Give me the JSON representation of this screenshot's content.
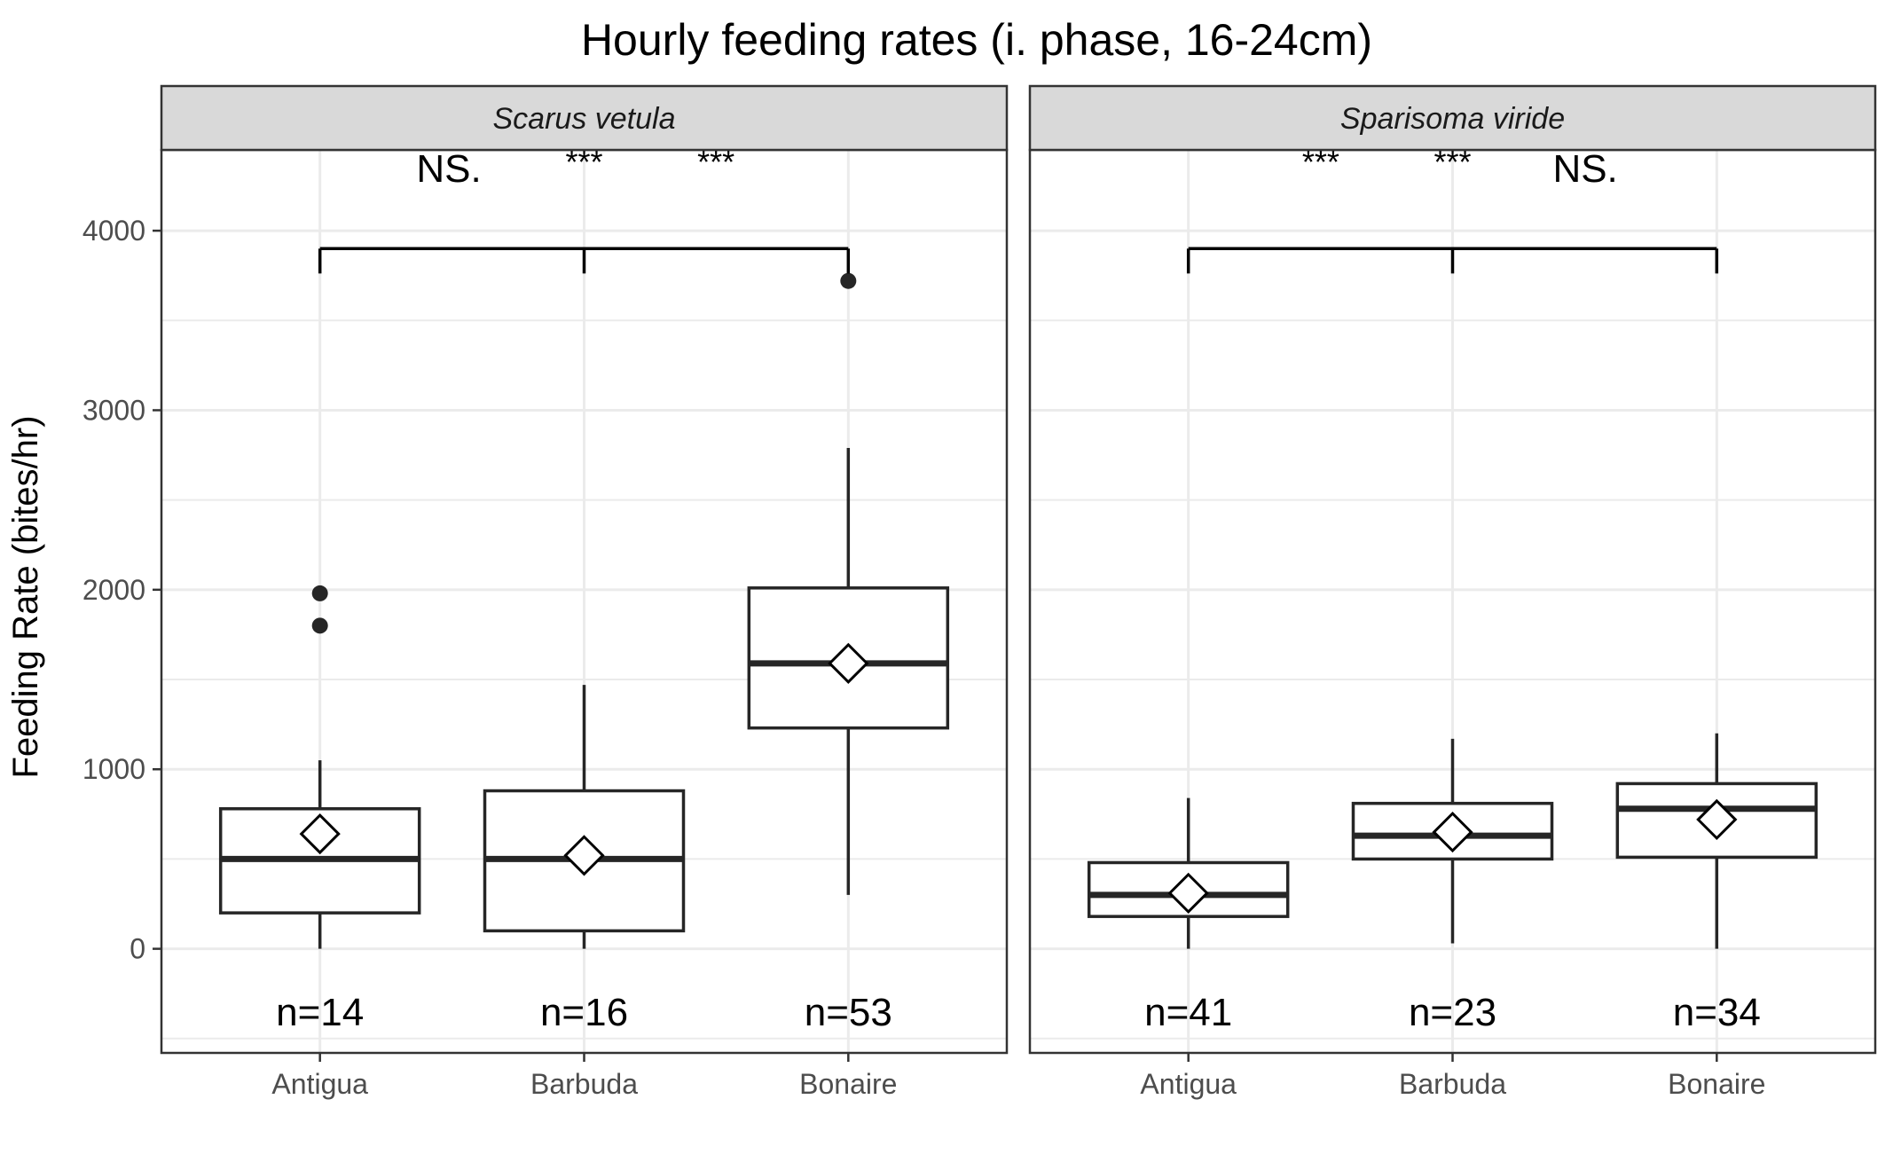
{
  "chart_data": {
    "type": "box",
    "title": "Hourly feeding rates (i. phase, 16-24cm)",
    "ylabel": "Feeding Rate (bites/hr)",
    "xlabel": "",
    "categories": [
      "Antigua",
      "Barbuda",
      "Bonaire"
    ],
    "y_ticks": [
      "0",
      "1000",
      "2000",
      "3000",
      "4000"
    ],
    "ylim": [
      -580,
      4450
    ],
    "grid": true,
    "panels": [
      {
        "label": "Scarus vetula",
        "groups": [
          {
            "category": "Antigua",
            "n_label": "n=14",
            "whisker_low": 0,
            "q1": 200,
            "median": 500,
            "q3": 780,
            "whisker_high": 1050,
            "mean": 640,
            "outliers": [
              1800,
              1980
            ]
          },
          {
            "category": "Barbuda",
            "n_label": "n=16",
            "whisker_low": 0,
            "q1": 100,
            "median": 500,
            "q3": 880,
            "whisker_high": 1470,
            "mean": 520,
            "outliers": []
          },
          {
            "category": "Bonaire",
            "n_label": "n=53",
            "whisker_low": 300,
            "q1": 1230,
            "median": 1590,
            "q3": 2010,
            "whisker_high": 2790,
            "mean": 1590,
            "outliers": [
              3720
            ]
          }
        ],
        "significance": {
          "bracket_y": 3900,
          "labels": [
            "NS.",
            "***",
            "***"
          ]
        }
      },
      {
        "label": "Sparisoma viride",
        "groups": [
          {
            "category": "Antigua",
            "n_label": "n=41",
            "whisker_low": 0,
            "q1": 180,
            "median": 300,
            "q3": 480,
            "whisker_high": 840,
            "mean": 310,
            "outliers": []
          },
          {
            "category": "Barbuda",
            "n_label": "n=23",
            "whisker_low": 30,
            "q1": 500,
            "median": 630,
            "q3": 810,
            "whisker_high": 1170,
            "mean": 650,
            "outliers": []
          },
          {
            "category": "Bonaire",
            "n_label": "n=34",
            "whisker_low": 0,
            "q1": 510,
            "median": 780,
            "q3": 920,
            "whisker_high": 1200,
            "mean": 720,
            "outliers": []
          }
        ],
        "significance": {
          "bracket_y": 3900,
          "labels": [
            "***",
            "***",
            "NS."
          ]
        }
      }
    ]
  }
}
